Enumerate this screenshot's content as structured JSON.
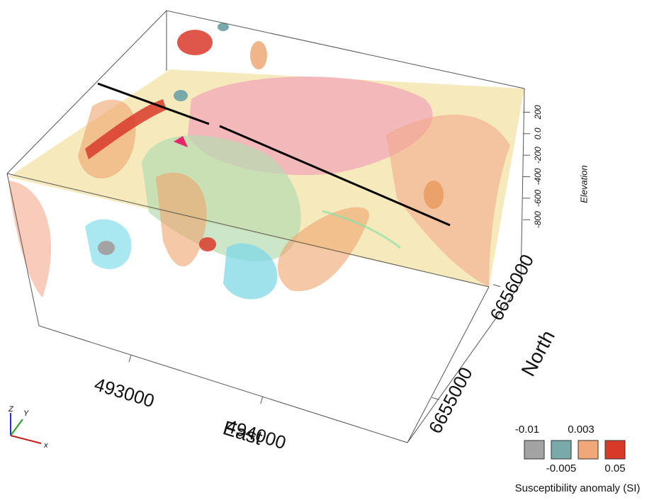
{
  "chart_data": {
    "type": "isosurface3d",
    "xlabel": "East",
    "ylabel": "North",
    "zlabel": "Elevation",
    "xlim": [
      492300,
      495100
    ],
    "xticks": [
      493000,
      494000
    ],
    "ylim": [
      6654600,
      6656450
    ],
    "yticks": [
      6655000,
      6656000
    ],
    "zlim": [
      -930,
      420
    ],
    "zticks": [
      -800,
      -600,
      -400,
      -200,
      {
        "value": 0,
        "label": "0.0"
      },
      200
    ],
    "legend_title": "Susceptibility anomaly (SI)",
    "levels": [
      -0.01,
      -0.005,
      0.003,
      0.05
    ],
    "level_colors": [
      "#a3a3a3",
      "#7aa9aa",
      "#f0a878",
      "#d83a2a"
    ],
    "triad_labels": [
      "Z",
      "Y",
      "x"
    ]
  }
}
